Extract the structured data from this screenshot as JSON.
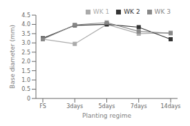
{
  "chart_data": {
    "type": "line",
    "categories": [
      "FS",
      "3days",
      "5days",
      "7days",
      "14days"
    ],
    "series": [
      {
        "name": "WK 1",
        "color": "#aaaaaa",
        "marker": "square",
        "line_style": "solid",
        "values": [
          3.2,
          2.95,
          4.0,
          3.5,
          3.55
        ]
      },
      {
        "name": "WK 2",
        "color": "#333333",
        "marker": "square",
        "line_style": "solid",
        "values": [
          3.25,
          3.95,
          4.0,
          3.85,
          3.2
        ]
      },
      {
        "name": "WK 3",
        "color": "#888888",
        "marker": "square",
        "line_style": "solid",
        "values": [
          3.2,
          3.97,
          4.1,
          3.62,
          3.52
        ]
      }
    ],
    "xlabel": "Planting regime",
    "ylabel": "Base diameter (mm)",
    "ylim": [
      0,
      4.5
    ],
    "yticks": [
      0,
      0.5,
      {
        "value": 1.0,
        "label": "1.0"
      },
      1.5,
      {
        "value": 2.0,
        "label": "2.0"
      },
      2.5,
      {
        "value": 3.0,
        "label": "3.0"
      },
      3.5,
      {
        "value": 4.0,
        "label": "4.0"
      },
      4.5
    ],
    "legend": "upper right"
  }
}
